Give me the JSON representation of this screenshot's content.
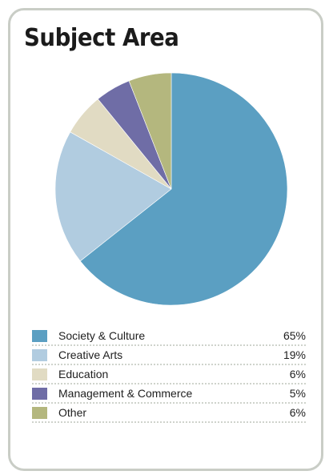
{
  "title": "Subject Area",
  "chart_data": {
    "type": "pie",
    "title": "Subject Area",
    "legend_position": "bottom",
    "slices": [
      {
        "label": "Society & Culture",
        "value": 65,
        "value_label": "65%",
        "color": "#5b9fc2"
      },
      {
        "label": "Creative Arts",
        "value": 19,
        "value_label": "19%",
        "color": "#b1cce0"
      },
      {
        "label": "Education",
        "value": 6,
        "value_label": "6%",
        "color": "#e1dbc3"
      },
      {
        "label": "Management & Commerce",
        "value": 5,
        "value_label": "5%",
        "color": "#6f6da6"
      },
      {
        "label": "Other",
        "value": 6,
        "value_label": "6%",
        "color": "#b4b77e"
      }
    ]
  }
}
